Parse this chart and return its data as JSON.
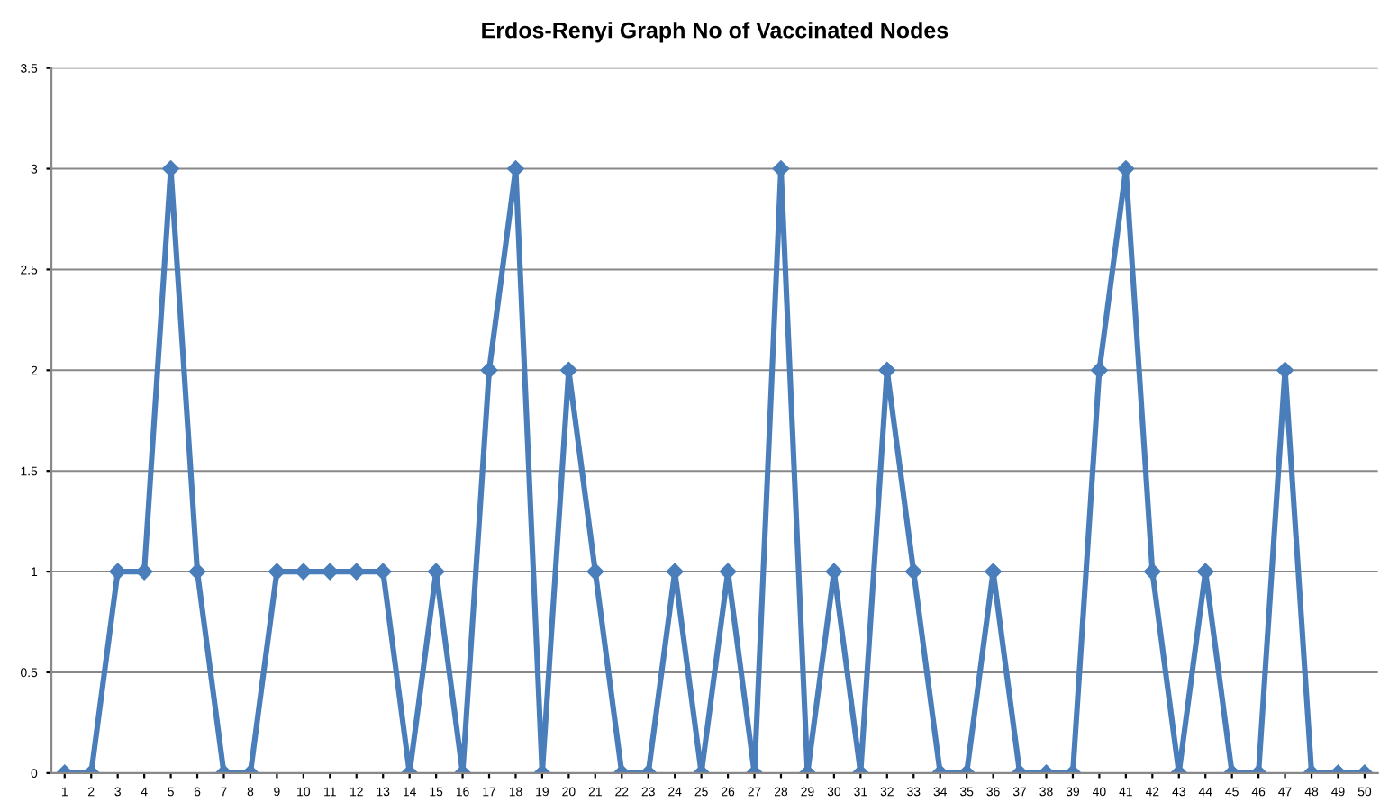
{
  "chart_data": {
    "type": "line",
    "title": "Erdos-Renyi Graph No of Vaccinated Nodes",
    "categories": [
      "1",
      "2",
      "3",
      "4",
      "5",
      "6",
      "7",
      "8",
      "9",
      "10",
      "11",
      "12",
      "13",
      "14",
      "15",
      "16",
      "17",
      "18",
      "19",
      "20",
      "21",
      "22",
      "23",
      "24",
      "25",
      "26",
      "27",
      "28",
      "29",
      "30",
      "31",
      "32",
      "33",
      "34",
      "35",
      "36",
      "37",
      "38",
      "39",
      "40",
      "41",
      "42",
      "43",
      "44",
      "45",
      "46",
      "47",
      "48",
      "49",
      "50"
    ],
    "series": [
      {
        "color": "#4a7ebb",
        "values": [
          0,
          0,
          1,
          1,
          3,
          1,
          0,
          0,
          1,
          1,
          1,
          1,
          1,
          0,
          1,
          0,
          2,
          3,
          0,
          2,
          1,
          0,
          0,
          1,
          0,
          1,
          0,
          3,
          0,
          1,
          0,
          2,
          1,
          0,
          0,
          1,
          0,
          0,
          0,
          2,
          3,
          1,
          0,
          1,
          0,
          0,
          2,
          0,
          0,
          0
        ]
      }
    ],
    "ylim": [
      0,
      3.5
    ],
    "yticks": [
      0,
      0.5,
      1,
      1.5,
      2,
      2.5,
      3,
      3.5
    ],
    "grid": "y",
    "marker": "diamond",
    "line_style": "solid",
    "legend": false
  }
}
